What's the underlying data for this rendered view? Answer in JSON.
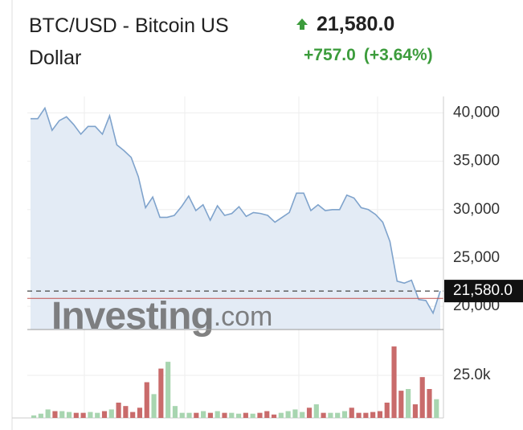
{
  "header": {
    "title": "BTC/USD - Bitcoin US Dollar",
    "price": "21,580.0",
    "change": "+757.0",
    "change_percent": "(+3.64%)"
  },
  "chart_data": {
    "type": "area",
    "values": [
      39400,
      39400,
      40500,
      38200,
      39200,
      39600,
      38800,
      37800,
      38600,
      38600,
      37800,
      39700,
      36700,
      36100,
      35400,
      33400,
      30200,
      31300,
      29200,
      29200,
      29400,
      30300,
      31400,
      29900,
      30500,
      28900,
      30400,
      29400,
      29600,
      30300,
      29300,
      29700,
      29600,
      29400,
      28700,
      29200,
      29700,
      31700,
      31700,
      29900,
      30500,
      29900,
      30000,
      30000,
      31500,
      31200,
      30200,
      30000,
      29500,
      28700,
      26700,
      22600,
      22400,
      22700,
      20700,
      20600,
      19300,
      21580
    ],
    "color": "#7fa3cc",
    "fill": "#e3ebf5",
    "ylim": [
      17600,
      41700
    ],
    "yticks": [
      {
        "value": 20000,
        "label": "20,000"
      },
      {
        "value": 25000,
        "label": "25,000"
      },
      {
        "value": 30000,
        "label": "30,000"
      },
      {
        "value": 35000,
        "label": "35,000"
      },
      {
        "value": 40000,
        "label": "40,000"
      }
    ],
    "grid": true,
    "last": {
      "value": 21580,
      "label": "21,580.0"
    },
    "reference_line": 20823,
    "watermark": {
      "brand": "Investing",
      "suffix": ".com"
    },
    "volume": {
      "values": [
        1500,
        2500,
        5000,
        4000,
        4000,
        3500,
        3000,
        3000,
        3500,
        3000,
        4000,
        5000,
        9000,
        7000,
        3500,
        6000,
        21000,
        14000,
        29000,
        33000,
        7000,
        3000,
        3000,
        3000,
        4000,
        3000,
        4000,
        3000,
        3000,
        2500,
        3000,
        2500,
        3000,
        4000,
        2000,
        3000,
        4000,
        5000,
        3500,
        6000,
        8000,
        3000,
        3000,
        3000,
        4000,
        6000,
        3000,
        3000,
        3500,
        4000,
        9000,
        42000,
        16000,
        17000,
        8000,
        24000,
        17000,
        11000
      ],
      "up_color": "#a8d5b0",
      "down_color": "#c96b6b",
      "ylim": [
        0,
        51000
      ],
      "yticks": [
        {
          "value": 25000,
          "label": "25.0k"
        }
      ]
    }
  }
}
